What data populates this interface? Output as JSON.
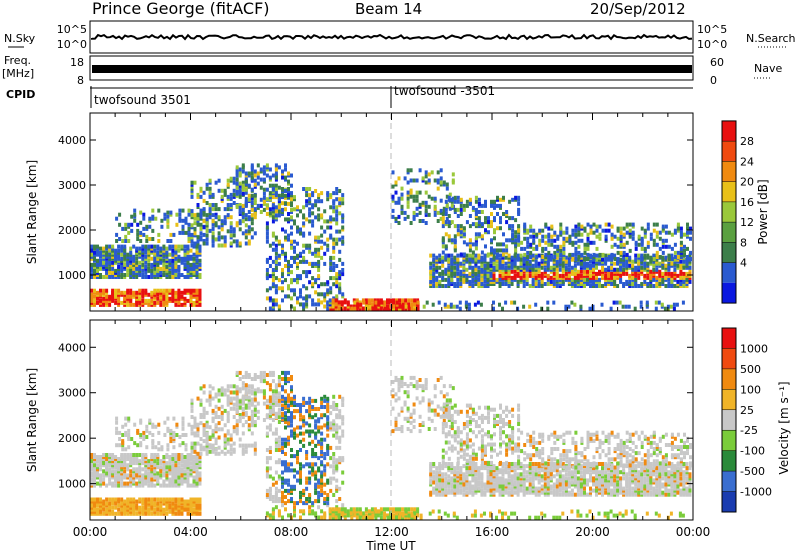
{
  "header": {
    "station": "Prince George (fitACF)",
    "beam": "Beam 14",
    "date": "20/Sep/2012"
  },
  "summary_panels": {
    "nsky": {
      "label": "N.Sky",
      "ticks": [
        "10^5",
        "10^0"
      ]
    },
    "nsearch": {
      "label": "N.Search",
      "ticks": [
        "10^5",
        "10^0"
      ]
    },
    "freq": {
      "label_line1": "Freq.",
      "label_line2": "[MHz]",
      "ticks": [
        "18",
        "8"
      ]
    },
    "nave": {
      "label": "Nave",
      "ticks": [
        "60",
        "0"
      ]
    },
    "cpid": {
      "label": "CPID",
      "modes": [
        "twofsound 3501",
        "twofsound -3501"
      ]
    }
  },
  "time_axis": {
    "ticks": [
      "00:00",
      "04:00",
      "08:00",
      "12:00",
      "16:00",
      "20:00",
      "00:00"
    ],
    "title": "Time UT"
  },
  "chart_data": [
    {
      "type": "heatmap",
      "name": "power",
      "ylabel": "Slant Range [km]",
      "yticks": [
        1000,
        2000,
        3000,
        4000
      ],
      "ylim": [
        200,
        4600
      ],
      "xlim_hours": [
        0,
        24
      ],
      "colorbar_label": "Power [dB]",
      "colorbar_ticks": [
        "28",
        "24",
        "20",
        "16",
        "12",
        "8",
        "4"
      ],
      "colorbar_colors": [
        "#0a18e0",
        "#2a5ad0",
        "#3c7e4a",
        "#5aa040",
        "#9ac83a",
        "#e8c018",
        "#f08a10",
        "#f04a10",
        "#e81010"
      ]
    },
    {
      "type": "heatmap",
      "name": "velocity",
      "ylabel": "Slant Range [km]",
      "yticks": [
        1000,
        2000,
        3000,
        4000
      ],
      "ylim": [
        200,
        4600
      ],
      "xlim_hours": [
        0,
        24
      ],
      "colorbar_label": "Velocity [m s⁻¹]",
      "colorbar_ticks": [
        "1000",
        "500",
        "100",
        "25",
        "-25",
        "-100",
        "-500",
        "-1000"
      ],
      "colorbar_colors": [
        "#1a3cb0",
        "#3a6ed0",
        "#2a8a3a",
        "#7acc3a",
        "#c8c8c8",
        "#f0b428",
        "#f08a10",
        "#f04a10",
        "#e81010"
      ]
    }
  ]
}
